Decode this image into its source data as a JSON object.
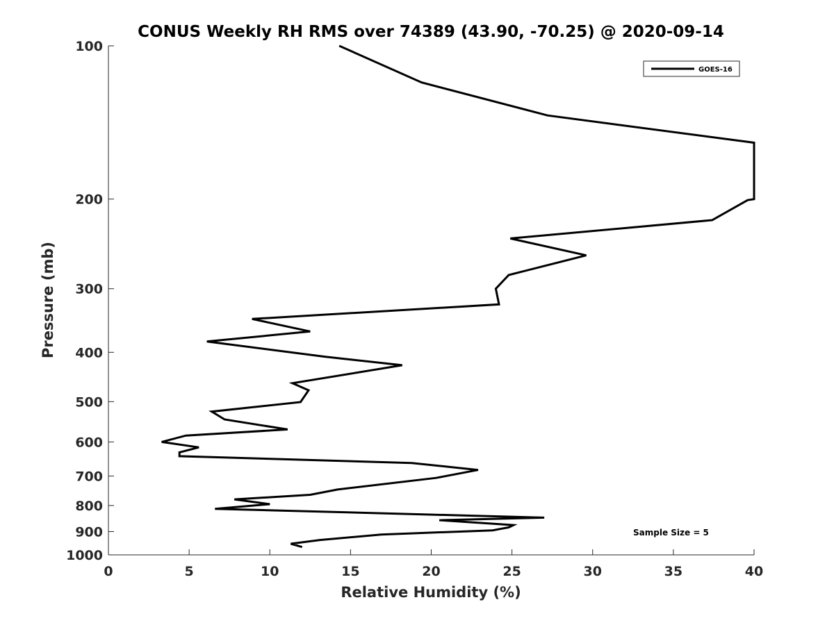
{
  "chart_data": {
    "type": "line",
    "title": "CONUS Weekly RH RMS over 74389 (43.90, -70.25) @ 2020-09-14",
    "xlabel": "Relative Humidity (%)",
    "ylabel": "Pressure (mb)",
    "xlim": [
      0,
      40
    ],
    "ylim": [
      100,
      1000
    ],
    "y_scale": "log",
    "y_reversed": true,
    "x_ticks": [
      0,
      5,
      10,
      15,
      20,
      25,
      30,
      35,
      40
    ],
    "y_ticks": [
      100,
      200,
      300,
      400,
      500,
      600,
      700,
      800,
      900,
      1000
    ],
    "grid": false,
    "legend_position": "top-right",
    "series": [
      {
        "name": "GOES-16",
        "color": "#000000",
        "points": [
          [
            14.3,
            100
          ],
          [
            19.4,
            118
          ],
          [
            27.2,
            137
          ],
          [
            40.0,
            155
          ],
          [
            40.0,
            200
          ],
          [
            39.6,
            201
          ],
          [
            37.4,
            220
          ],
          [
            24.9,
            239
          ],
          [
            29.6,
            258
          ],
          [
            24.8,
            282
          ],
          [
            24.0,
            300
          ],
          [
            24.2,
            322
          ],
          [
            8.9,
            344
          ],
          [
            12.5,
            364
          ],
          [
            6.1,
            381
          ],
          [
            13.4,
            408
          ],
          [
            18.2,
            424
          ],
          [
            11.4,
            460
          ],
          [
            12.4,
            475
          ],
          [
            11.9,
            501
          ],
          [
            6.4,
            523
          ],
          [
            7.2,
            542
          ],
          [
            11.1,
            567
          ],
          [
            4.8,
            583
          ],
          [
            3.3,
            600
          ],
          [
            5.6,
            615
          ],
          [
            4.4,
            629
          ],
          [
            4.4,
            640
          ],
          [
            18.8,
            660
          ],
          [
            22.9,
            681
          ],
          [
            20.3,
            706
          ],
          [
            14.2,
            744
          ],
          [
            12.5,
            762
          ],
          [
            7.8,
            778
          ],
          [
            10.0,
            795
          ],
          [
            6.6,
            812
          ],
          [
            27.0,
            845
          ],
          [
            20.5,
            855
          ],
          [
            25.1,
            874
          ],
          [
            24.8,
            883
          ],
          [
            23.8,
            895
          ],
          [
            16.9,
            912
          ],
          [
            13.1,
            935
          ],
          [
            11.3,
            951
          ],
          [
            12.0,
            965
          ]
        ]
      }
    ],
    "annotations": [
      "Sample Size = 5"
    ]
  }
}
